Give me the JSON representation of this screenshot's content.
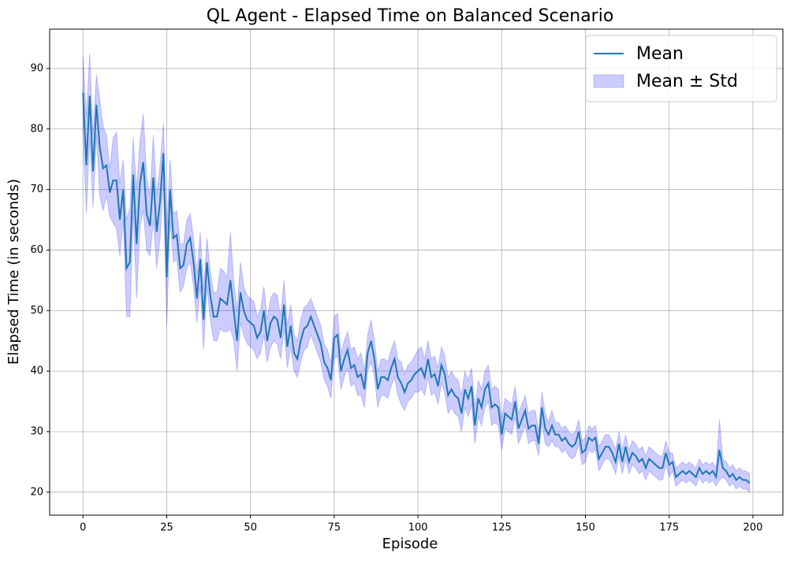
{
  "chart_data": {
    "type": "line-band",
    "title": "QL Agent - Elapsed Time on Balanced Scenario",
    "x_label": "Episode",
    "y_label": "Elapsed Time (in seconds)",
    "x": [
      0,
      1,
      2,
      3,
      4,
      5,
      6,
      7,
      8,
      9,
      10,
      11,
      12,
      13,
      14,
      15,
      16,
      17,
      18,
      19,
      20,
      21,
      22,
      23,
      24,
      25,
      26,
      27,
      28,
      29,
      30,
      31,
      32,
      33,
      34,
      35,
      36,
      37,
      38,
      39,
      40,
      41,
      42,
      43,
      44,
      45,
      46,
      47,
      48,
      49,
      50,
      51,
      52,
      53,
      54,
      55,
      56,
      57,
      58,
      59,
      60,
      61,
      62,
      63,
      64,
      65,
      66,
      67,
      68,
      69,
      70,
      71,
      72,
      73,
      74,
      75,
      76,
      77,
      78,
      79,
      80,
      81,
      82,
      83,
      84,
      85,
      86,
      87,
      88,
      89,
      90,
      91,
      92,
      93,
      94,
      95,
      96,
      97,
      98,
      99,
      100,
      101,
      102,
      103,
      104,
      105,
      106,
      107,
      108,
      109,
      110,
      111,
      112,
      113,
      114,
      115,
      116,
      117,
      118,
      119,
      120,
      121,
      122,
      123,
      124,
      125,
      126,
      127,
      128,
      129,
      130,
      131,
      132,
      133,
      134,
      135,
      136,
      137,
      138,
      139,
      140,
      141,
      142,
      143,
      144,
      145,
      146,
      147,
      148,
      149,
      150,
      151,
      152,
      153,
      154,
      155,
      156,
      157,
      158,
      159,
      160,
      161,
      162,
      163,
      164,
      165,
      166,
      167,
      168,
      169,
      170,
      171,
      172,
      173,
      174,
      175,
      176,
      177,
      178,
      179,
      180,
      181,
      182,
      183,
      184,
      185,
      186,
      187,
      188,
      189,
      190,
      191,
      192,
      193,
      194,
      195,
      196,
      197,
      198,
      199
    ],
    "series": [
      {
        "name": "Mean",
        "color": "#1f77b4",
        "values": [
          86,
          74,
          85.5,
          73,
          84,
          77,
          73.5,
          74,
          69.5,
          71.5,
          71.5,
          65,
          70,
          57,
          58,
          72.5,
          61,
          71,
          74.5,
          66,
          64,
          72,
          63,
          68,
          76,
          55.5,
          70,
          62,
          62.5,
          57,
          57.5,
          61,
          62,
          58,
          52,
          58.5,
          48.5,
          58,
          52.5,
          49,
          49,
          52,
          51.5,
          51,
          55,
          50,
          45,
          53,
          50,
          48.5,
          48,
          47.5,
          45.5,
          46.5,
          50,
          45,
          48,
          49,
          48.5,
          45.5,
          51,
          44,
          47.5,
          43,
          42,
          45,
          47,
          47.5,
          49,
          47.5,
          46,
          44.5,
          41.5,
          40.5,
          38.5,
          45.5,
          46,
          40,
          42,
          43.5,
          40.5,
          41,
          39,
          39.5,
          37,
          43,
          45,
          42,
          37,
          39,
          39,
          38.5,
          40.5,
          42,
          39,
          38,
          36.5,
          38,
          38.5,
          39.5,
          40,
          40.5,
          39,
          42,
          39,
          39.5,
          37.5,
          41,
          39.5,
          36,
          37,
          36,
          35.5,
          33,
          37,
          35.5,
          37.5,
          31,
          35.5,
          34,
          37,
          38,
          34,
          34.5,
          34,
          29.5,
          33,
          32.5,
          32,
          35,
          30.5,
          32,
          33.5,
          30.5,
          31,
          31,
          28,
          34,
          30.5,
          29.5,
          31,
          29.5,
          29.5,
          28.5,
          29,
          28,
          27.5,
          28,
          30,
          26.5,
          27,
          29,
          28.5,
          29,
          25.5,
          26.5,
          27.5,
          27.5,
          26.5,
          25,
          28,
          25,
          27.5,
          25,
          26.5,
          26,
          25,
          25.5,
          24,
          25.5,
          25,
          24.5,
          24,
          24,
          26.5,
          24.5,
          25,
          22.5,
          23,
          23.5,
          23,
          23.5,
          23,
          22.5,
          24,
          23,
          23.5,
          23,
          23.5,
          22.5,
          27,
          24,
          23.5,
          22.5,
          23,
          22,
          22.5,
          22,
          22,
          21.5
        ]
      },
      {
        "name": "Mean ± Std",
        "color": "#0000ff",
        "std": [
          6,
          8,
          7,
          6,
          5,
          8,
          7,
          5,
          4,
          7,
          8,
          6,
          5,
          8,
          9,
          6,
          9,
          7,
          8,
          6,
          5,
          7,
          6,
          6,
          5,
          8,
          5,
          4,
          4,
          4,
          3.5,
          4,
          4,
          4,
          4,
          4.5,
          5,
          4,
          4,
          4,
          4,
          5,
          5,
          4.5,
          8,
          5,
          5,
          5,
          4,
          4,
          4,
          4,
          3.5,
          3.5,
          4,
          3.5,
          4,
          4,
          4,
          3.5,
          4,
          3.5,
          3.5,
          3,
          3,
          3.5,
          3.5,
          3.5,
          3,
          3,
          3,
          3,
          3,
          3,
          3,
          3.5,
          3.5,
          3,
          3,
          3,
          3,
          3,
          3,
          3.5,
          3,
          3,
          3.5,
          3,
          3,
          3,
          3,
          3,
          3,
          3,
          3,
          3.5,
          3,
          3,
          3,
          3,
          3.5,
          3.5,
          3,
          3,
          3,
          3,
          3,
          3,
          3,
          3,
          3,
          3,
          3,
          3,
          3,
          3,
          3,
          3,
          3,
          3,
          3,
          3,
          3,
          3,
          3,
          2.5,
          2.5,
          2.5,
          2.5,
          2.5,
          2.5,
          2.5,
          2.5,
          2.5,
          2.5,
          2.5,
          2,
          2.5,
          2.5,
          2,
          2.5,
          2,
          2,
          2,
          2,
          2,
          2,
          2,
          2,
          2,
          2,
          2,
          2,
          2,
          2,
          2,
          2,
          2,
          2,
          2,
          2,
          2,
          2,
          2,
          2,
          2,
          2,
          2,
          2,
          2,
          2,
          2,
          2,
          2,
          2,
          2,
          1.5,
          1.5,
          1.5,
          1.5,
          1.5,
          1.5,
          1.5,
          1.5,
          1.5,
          1.5,
          1.5,
          1.5,
          1.5,
          1.5,
          5,
          1.5,
          1.5,
          1.5,
          1.5,
          1.5,
          1.5,
          1.5,
          1.5,
          1.5
        ]
      }
    ],
    "xlim": [
      -9.95,
      208.95
    ],
    "xticks": [
      0,
      25,
      50,
      75,
      100,
      125,
      150,
      175,
      200
    ],
    "ylim": [
      16.2,
      96.5
    ],
    "yticks": [
      20,
      30,
      40,
      50,
      60,
      70,
      80,
      90
    ],
    "grid": true,
    "legend": "upper right"
  }
}
